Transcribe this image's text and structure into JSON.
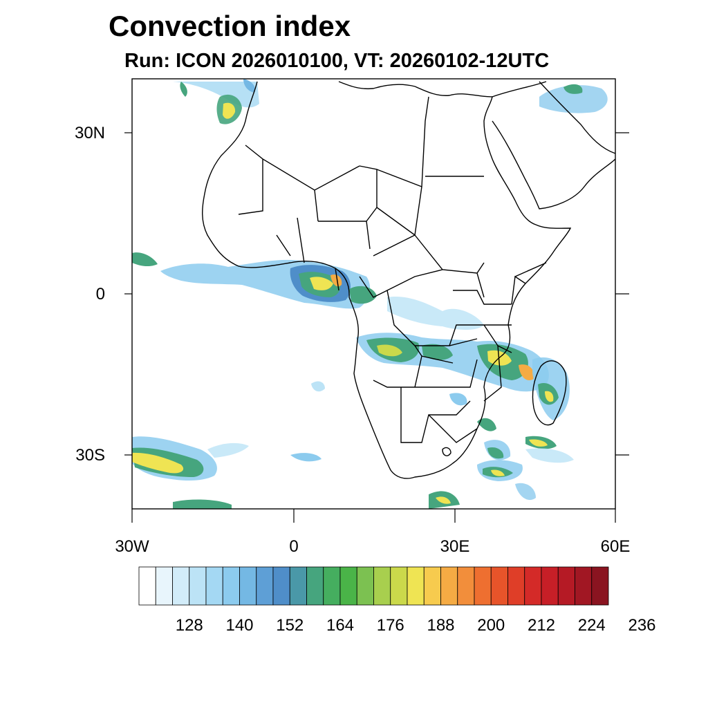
{
  "title": "Convection index",
  "subtitle": "Run: ICON 2026010100,  VT: 20260102-12UTC",
  "map": {
    "region": "Africa",
    "lon_range": [
      -30,
      60
    ],
    "lat_range": [
      -40,
      40
    ],
    "lat_ticks": [
      {
        "value": 30,
        "label": "30N"
      },
      {
        "value": 0,
        "label": "0"
      },
      {
        "value": -30,
        "label": "30S"
      }
    ],
    "lon_ticks": [
      {
        "value": -30,
        "label": "30W"
      },
      {
        "value": 0,
        "label": "0"
      },
      {
        "value": 30,
        "label": "30E"
      },
      {
        "value": 60,
        "label": "60E"
      }
    ]
  },
  "colorbar": {
    "colors": [
      "#ffffff",
      "#e8f5fc",
      "#d2ecf9",
      "#bce3f6",
      "#a4d8f3",
      "#8ccbee",
      "#74b8e4",
      "#5e9fd6",
      "#4f8ec9",
      "#4a98a8",
      "#46a57e",
      "#45ae5f",
      "#4ab448",
      "#7cc151",
      "#a8cf4e",
      "#cbd94b",
      "#efe453",
      "#f7cb4e",
      "#f5ab44",
      "#f28e3b",
      "#ee6f30",
      "#e7542a",
      "#df3e28",
      "#d42a28",
      "#c71f27",
      "#b51a25",
      "#a11723",
      "#8a1420"
    ],
    "labels": [
      "128",
      "140",
      "152",
      "164",
      "176",
      "188",
      "200",
      "212",
      "224",
      "236"
    ]
  }
}
